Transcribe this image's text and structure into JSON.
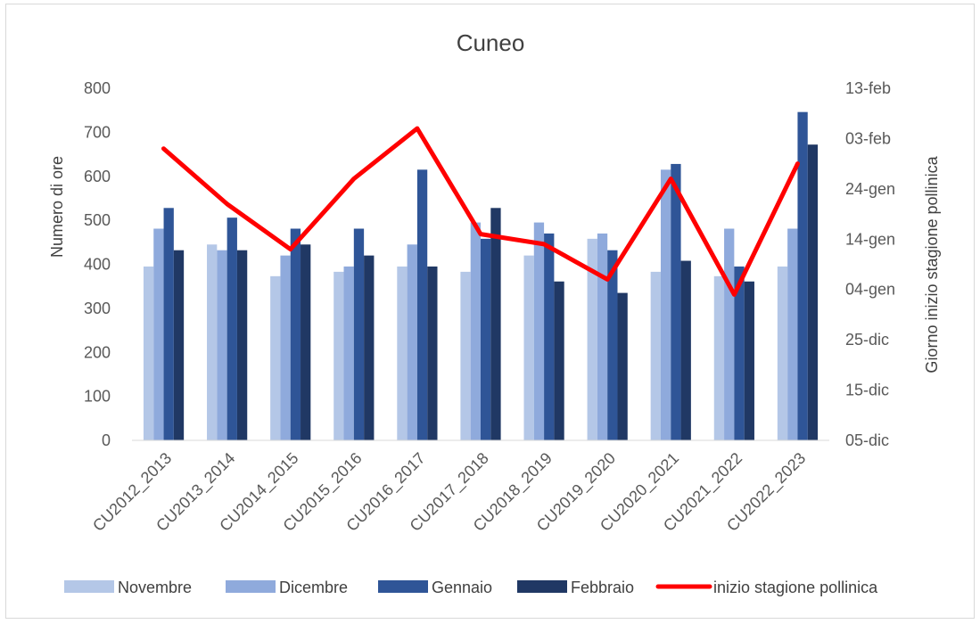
{
  "chart_data": {
    "type": "bar",
    "title": "Cuneo",
    "xlabel": "",
    "ylabel": "Numero di ore",
    "y2label": "Giorno inizio stagione pollinica",
    "ylim": [
      0,
      800
    ],
    "yticks": [
      "0",
      "100",
      "200",
      "300",
      "400",
      "500",
      "600",
      "700",
      "800"
    ],
    "y2ticks": [
      "05-dic",
      "15-dic",
      "25-dic",
      "04-gen",
      "14-gen",
      "24-gen",
      "03-feb",
      "13-feb"
    ],
    "y2_day_range": [
      0,
      70
    ],
    "categories": [
      "CU2012_2013",
      "CU2013_2014",
      "CU2014_2015",
      "CU2015_2016",
      "CU2016_2017",
      "CU2017_2018",
      "CU2018_2019",
      "CU2019_2020",
      "CU2020_2021",
      "CU2021_2022",
      "CU2022_2023"
    ],
    "series": [
      {
        "name": "Novembre",
        "color": "#b4c7e7",
        "values": [
          395,
          445,
          373,
          383,
          395,
          383,
          420,
          458,
          383,
          373,
          395
        ]
      },
      {
        "name": "Dicembre",
        "color": "#8faadc",
        "values": [
          481,
          432,
          420,
          395,
          445,
          495,
          495,
          470,
          615,
          481,
          481
        ]
      },
      {
        "name": "Gennaio",
        "color": "#2f5597",
        "values": [
          528,
          506,
          481,
          481,
          615,
          458,
          470,
          432,
          628,
          395,
          746
        ]
      },
      {
        "name": "Febbraio",
        "color": "#203864",
        "values": [
          432,
          432,
          445,
          420,
          395,
          528,
          361,
          335,
          408,
          361,
          672
        ]
      }
    ],
    "line": {
      "name": "inizio stagione pollinica",
      "color": "#ff0000",
      "axis": "secondary",
      "dates": [
        "2013-02-01",
        "2013-01-21",
        "2015-01-12",
        "2016-01-26",
        "2017-02-05",
        "2018-01-15",
        "2019-01-13",
        "2020-01-06",
        "2021-01-26",
        "2022-01-03",
        "2023-01-29"
      ]
    },
    "legend_position": "bottom",
    "grid": false
  }
}
